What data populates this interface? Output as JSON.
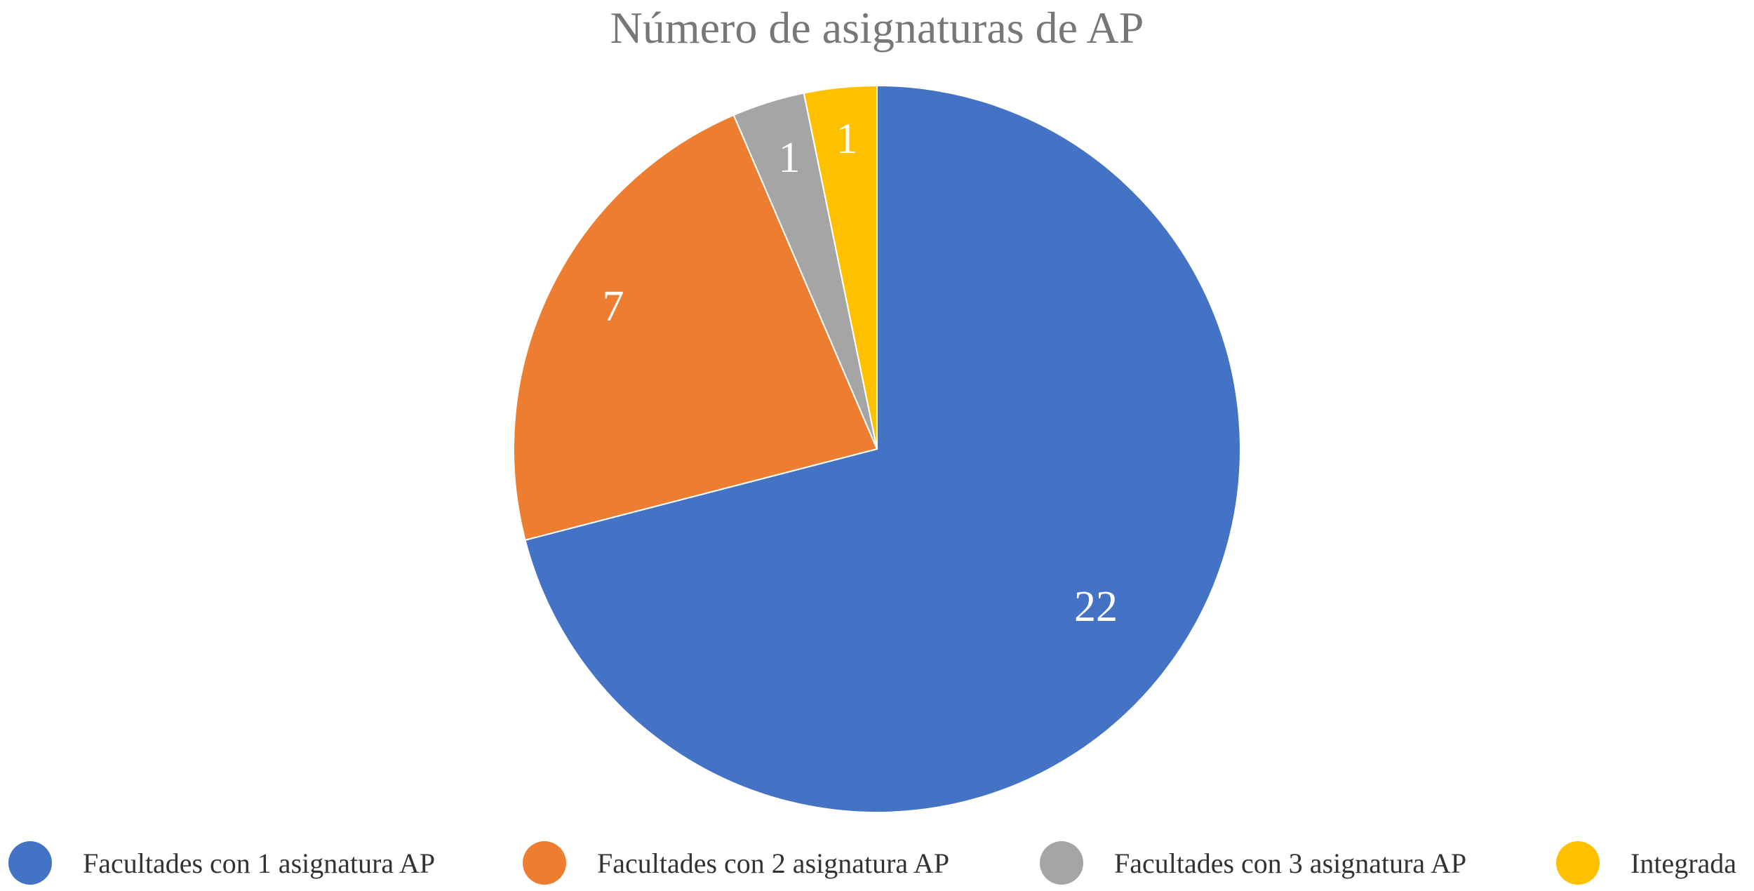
{
  "chart_data": {
    "type": "pie",
    "title": "Número de asignaturas de AP",
    "categories": [
      "Facultades con 1 asignatura AP",
      "Facultades con 2 asignatura AP",
      "Facultades con 3 asignatura AP",
      "Integrada"
    ],
    "values": [
      22,
      7,
      1,
      1
    ],
    "colors": [
      "#4472C4",
      "#ED7D31",
      "#A5A5A5",
      "#FFC000"
    ],
    "data_labels": [
      "22",
      "7",
      "1",
      "1"
    ],
    "start_angle": "12 o'clock",
    "direction": "clockwise",
    "legend_position": "bottom"
  }
}
